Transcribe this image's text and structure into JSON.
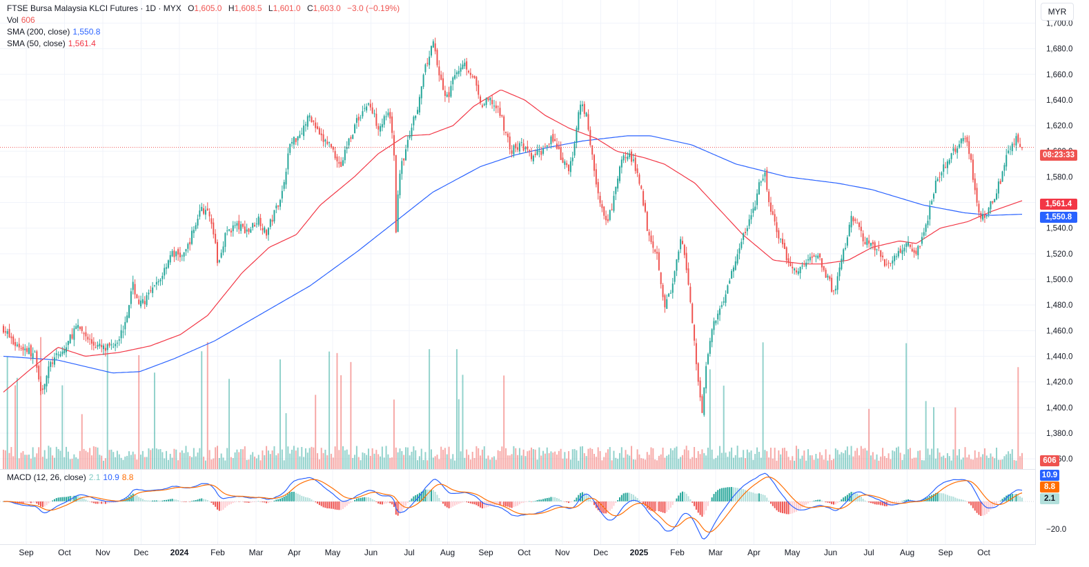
{
  "header": {
    "symbol": "FTSE Bursa Malaysia KLCI Futures · 1D · MYX",
    "open_label": "O",
    "open": "1,605.0",
    "high_label": "H",
    "high": "1,608.5",
    "low_label": "L",
    "low": "1,601.0",
    "close_label": "C",
    "close": "1,603.0",
    "change": "−3.0 (−0.19%)"
  },
  "volume": {
    "label": "Vol",
    "value": "606"
  },
  "sma200": {
    "label": "SMA (200, close)",
    "value": "1,550.8"
  },
  "sma50": {
    "label": "SMA (50, close)",
    "value": "1,561.4"
  },
  "macd": {
    "label": "MACD (12, 26, close)",
    "hist": "2.1",
    "macd": "10.9",
    "signal": "8.8"
  },
  "currency_button": "MYR",
  "countdown": "08:23:33",
  "colors": {
    "up": "#26a69a",
    "down": "#ef5350",
    "sma200": "#2962ff",
    "sma50": "#f23645",
    "macd": "#2962ff",
    "signal": "#ff6d00",
    "grid": "#f0f3fa",
    "text": "#131722"
  },
  "chart_data": {
    "type": "candlestick",
    "title": "FTSE Bursa Malaysia KLCI Futures · 1D · MYX",
    "price_axis": {
      "ticks": [
        "1,700.0",
        "1,680.0",
        "1,660.0",
        "1,640.0",
        "1,620.0",
        "1,600.0",
        "1,580.0",
        "1,560.0",
        "1,540.0",
        "1,520.0",
        "1,500.0",
        "1,480.0",
        "1,460.0",
        "1,440.0",
        "1,420.0",
        "1,400.0",
        "1,380.0",
        "1,360.0"
      ],
      "range": [
        1352,
        1718
      ]
    },
    "macd_axis": {
      "ticks": [
        "−20.0"
      ]
    },
    "time_axis": {
      "labels": [
        {
          "text": "Sep",
          "month": 0,
          "bold": false
        },
        {
          "text": "Oct",
          "month": 1,
          "bold": false
        },
        {
          "text": "Nov",
          "month": 2,
          "bold": false
        },
        {
          "text": "Dec",
          "month": 3,
          "bold": false
        },
        {
          "text": "2024",
          "month": 4,
          "bold": true
        },
        {
          "text": "Feb",
          "month": 5,
          "bold": false
        },
        {
          "text": "Mar",
          "month": 6,
          "bold": false
        },
        {
          "text": "Apr",
          "month": 7,
          "bold": false
        },
        {
          "text": "May",
          "month": 8,
          "bold": false
        },
        {
          "text": "Jun",
          "month": 9,
          "bold": false
        },
        {
          "text": "Jul",
          "month": 10,
          "bold": false
        },
        {
          "text": "Aug",
          "month": 11,
          "bold": false
        },
        {
          "text": "Sep",
          "month": 12,
          "bold": false
        },
        {
          "text": "Oct",
          "month": 13,
          "bold": false
        },
        {
          "text": "Nov",
          "month": 14,
          "bold": false
        },
        {
          "text": "Dec",
          "month": 15,
          "bold": false
        },
        {
          "text": "2025",
          "month": 16,
          "bold": true
        },
        {
          "text": "Feb",
          "month": 17,
          "bold": false
        },
        {
          "text": "Mar",
          "month": 18,
          "bold": false
        },
        {
          "text": "Apr",
          "month": 19,
          "bold": false
        },
        {
          "text": "May",
          "month": 20,
          "bold": false
        },
        {
          "text": "Jun",
          "month": 21,
          "bold": false
        },
        {
          "text": "Jul",
          "month": 22,
          "bold": false
        },
        {
          "text": "Aug",
          "month": 23,
          "bold": false
        },
        {
          "text": "Sep",
          "month": 24,
          "bold": false
        },
        {
          "text": "Oct",
          "month": 25,
          "bold": false
        }
      ]
    },
    "last_price": 1603.0,
    "close_anchors": [
      [
        0,
        1462
      ],
      [
        0.3,
        1450
      ],
      [
        0.7,
        1445
      ],
      [
        0.95,
        1440
      ],
      [
        1.1,
        1412
      ],
      [
        1.4,
        1435
      ],
      [
        1.8,
        1445
      ],
      [
        2.1,
        1462
      ],
      [
        2.3,
        1460
      ],
      [
        2.6,
        1450
      ],
      [
        3.0,
        1445
      ],
      [
        3.3,
        1452
      ],
      [
        3.5,
        1460
      ],
      [
        3.8,
        1495
      ],
      [
        4.0,
        1480
      ],
      [
        4.3,
        1488
      ],
      [
        4.6,
        1500
      ],
      [
        4.9,
        1520
      ],
      [
        5.3,
        1518
      ],
      [
        5.6,
        1540
      ],
      [
        5.8,
        1556
      ],
      [
        6.1,
        1548
      ],
      [
        6.3,
        1510
      ],
      [
        6.5,
        1535
      ],
      [
        6.8,
        1542
      ],
      [
        7.2,
        1538
      ],
      [
        7.5,
        1548
      ],
      [
        7.7,
        1535
      ],
      [
        7.9,
        1548
      ],
      [
        8.2,
        1570
      ],
      [
        8.4,
        1605
      ],
      [
        8.7,
        1614
      ],
      [
        9.0,
        1628
      ],
      [
        9.3,
        1610
      ],
      [
        9.6,
        1605
      ],
      [
        9.9,
        1588
      ],
      [
        10.1,
        1606
      ],
      [
        10.4,
        1625
      ],
      [
        10.7,
        1638
      ],
      [
        11.0,
        1620
      ],
      [
        11.3,
        1628
      ],
      [
        11.45,
        1610
      ],
      [
        11.52,
        1535
      ],
      [
        11.6,
        1580
      ],
      [
        11.9,
        1610
      ],
      [
        12.2,
        1640
      ],
      [
        12.4,
        1666
      ],
      [
        12.6,
        1685
      ],
      [
        12.8,
        1660
      ],
      [
        13.0,
        1640
      ],
      [
        13.3,
        1662
      ],
      [
        13.5,
        1670
      ],
      [
        13.8,
        1658
      ],
      [
        14.0,
        1635
      ],
      [
        14.3,
        1640
      ],
      [
        14.6,
        1628
      ],
      [
        14.9,
        1600
      ],
      [
        15.2,
        1605
      ],
      [
        15.5,
        1595
      ],
      [
        15.8,
        1600
      ],
      [
        16.1,
        1612
      ],
      [
        16.4,
        1592
      ],
      [
        16.6,
        1585
      ],
      [
        16.8,
        1608
      ],
      [
        16.9,
        1640
      ],
      [
        17.1,
        1630
      ],
      [
        17.3,
        1592
      ],
      [
        17.5,
        1560
      ],
      [
        17.7,
        1542
      ],
      [
        17.9,
        1560
      ],
      [
        18.1,
        1588
      ],
      [
        18.3,
        1600
      ],
      [
        18.5,
        1590
      ],
      [
        18.7,
        1575
      ],
      [
        18.9,
        1540
      ],
      [
        19.2,
        1518
      ],
      [
        19.4,
        1480
      ],
      [
        19.6,
        1490
      ],
      [
        19.9,
        1532
      ],
      [
        20.1,
        1500
      ],
      [
        20.3,
        1445
      ],
      [
        20.5,
        1395
      ],
      [
        20.6,
        1430
      ],
      [
        20.8,
        1460
      ],
      [
        21.0,
        1475
      ],
      [
        21.2,
        1490
      ],
      [
        21.5,
        1515
      ],
      [
        21.8,
        1540
      ],
      [
        22.0,
        1552
      ],
      [
        22.2,
        1575
      ],
      [
        22.35,
        1582
      ],
      [
        22.5,
        1555
      ],
      [
        22.8,
        1530
      ],
      [
        23.0,
        1515
      ],
      [
        23.3,
        1505
      ],
      [
        23.6,
        1515
      ],
      [
        23.9,
        1520
      ],
      [
        24.2,
        1500
      ],
      [
        24.4,
        1488
      ],
      [
        24.6,
        1515
      ],
      [
        24.9,
        1548
      ],
      [
        25.3,
        1530
      ],
      [
        25.6,
        1525
      ],
      [
        25.9,
        1512
      ],
      [
        26.2,
        1518
      ],
      [
        26.5,
        1530
      ],
      [
        26.8,
        1520
      ],
      [
        27.1,
        1545
      ],
      [
        27.4,
        1580
      ],
      [
        27.7,
        1590
      ],
      [
        28.0,
        1605
      ],
      [
        28.2,
        1614
      ],
      [
        28.4,
        1592
      ],
      [
        28.6,
        1555
      ],
      [
        28.8,
        1545
      ],
      [
        29.0,
        1560
      ],
      [
        29.3,
        1580
      ],
      [
        29.5,
        1600
      ],
      [
        29.7,
        1610
      ],
      [
        29.9,
        1603
      ]
    ],
    "sma200_anchors": [
      [
        0,
        1440
      ],
      [
        1.6,
        1437
      ],
      [
        3.2,
        1427
      ],
      [
        4.0,
        1428
      ],
      [
        5.0,
        1438
      ],
      [
        6.2,
        1452
      ],
      [
        7.5,
        1472
      ],
      [
        9.0,
        1495
      ],
      [
        10.4,
        1522
      ],
      [
        11.5,
        1545
      ],
      [
        12.6,
        1568
      ],
      [
        14.0,
        1588
      ],
      [
        15.0,
        1597
      ],
      [
        16.0,
        1603
      ],
      [
        17.0,
        1608
      ],
      [
        18.3,
        1612
      ],
      [
        19.0,
        1612
      ],
      [
        20.2,
        1605
      ],
      [
        21.5,
        1590
      ],
      [
        23.0,
        1580
      ],
      [
        24.5,
        1575
      ],
      [
        25.5,
        1570
      ],
      [
        27.0,
        1558
      ],
      [
        28.2,
        1552
      ],
      [
        29.0,
        1550
      ],
      [
        29.9,
        1550.8
      ]
    ],
    "sma50_anchors": [
      [
        0,
        1412
      ],
      [
        0.8,
        1430
      ],
      [
        1.6,
        1447
      ],
      [
        2.4,
        1440
      ],
      [
        3.4,
        1443
      ],
      [
        4.3,
        1448
      ],
      [
        5.2,
        1457
      ],
      [
        6.0,
        1472
      ],
      [
        7.0,
        1505
      ],
      [
        7.8,
        1525
      ],
      [
        8.6,
        1535
      ],
      [
        9.3,
        1558
      ],
      [
        10.3,
        1580
      ],
      [
        11.0,
        1598
      ],
      [
        11.8,
        1612
      ],
      [
        12.5,
        1613
      ],
      [
        13.2,
        1620
      ],
      [
        13.8,
        1635
      ],
      [
        14.6,
        1648
      ],
      [
        15.3,
        1640
      ],
      [
        15.9,
        1628
      ],
      [
        16.6,
        1618
      ],
      [
        17.4,
        1610
      ],
      [
        18.0,
        1600
      ],
      [
        18.8,
        1595
      ],
      [
        19.4,
        1590
      ],
      [
        20.3,
        1575
      ],
      [
        21.0,
        1555
      ],
      [
        21.7,
        1535
      ],
      [
        22.6,
        1515
      ],
      [
        23.5,
        1512
      ],
      [
        24.0,
        1512
      ],
      [
        24.8,
        1515
      ],
      [
        25.5,
        1525
      ],
      [
        26.3,
        1530
      ],
      [
        26.8,
        1528
      ],
      [
        27.5,
        1540
      ],
      [
        28.3,
        1545
      ],
      [
        29.0,
        1553
      ],
      [
        29.9,
        1561.4
      ]
    ]
  }
}
